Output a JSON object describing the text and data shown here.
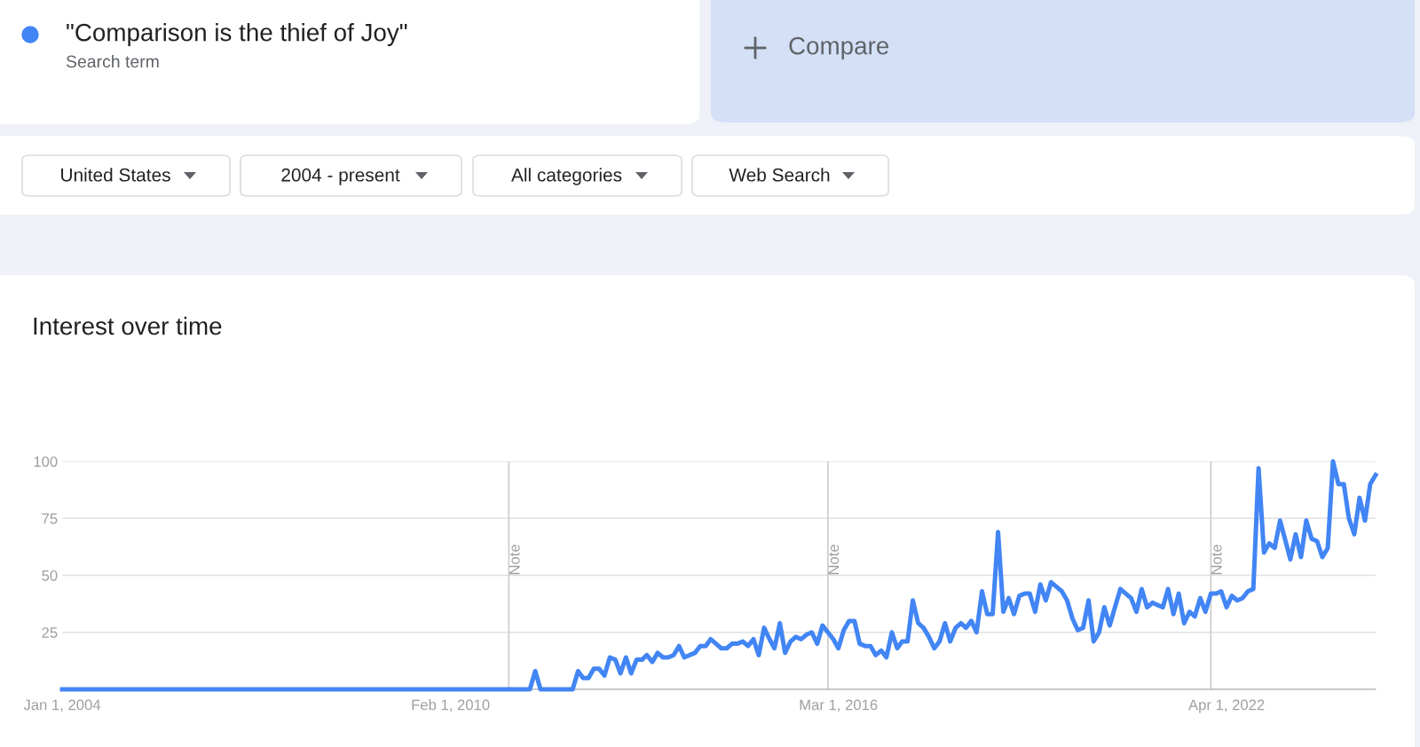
{
  "chart_data": {
    "type": "line",
    "title": "Interest over time",
    "legend": "top left",
    "annotations": [
      "Search term",
      "Compare",
      "United States",
      "2004 - present",
      "All categories",
      "Web Search"
    ],
    "xlim": [
      "2004-01",
      "2024-08"
    ],
    "ylim": [
      0,
      100
    ],
    "xticks": [
      {
        "value": "2004-01-01",
        "label": "Jan 1, 2004"
      },
      {
        "value": "2010-02-01",
        "label": "Feb 1, 2010"
      },
      {
        "value": "2016-03-01",
        "label": "Mar 1, 2016"
      },
      {
        "value": "2022-04-01",
        "label": "Apr 1, 2022"
      }
    ],
    "yticks": [
      {
        "value": 0,
        "label": null
      },
      25,
      50,
      75,
      100
    ],
    "grid": "y",
    "ref_lines": [
      {
        "axis": "x",
        "value": "2011-01",
        "label": "Note",
        "color": "#cccccc"
      },
      {
        "axis": "x",
        "value": "2016-01",
        "label": "Note",
        "color": "#cccccc"
      },
      {
        "axis": "x",
        "value": "2022-01",
        "label": "Note",
        "color": "#cccccc"
      }
    ],
    "series": [
      {
        "name": "\"Comparison is the thief of Joy\"",
        "color": "#4285f4",
        "x": [
          "2004-01",
          "2011-05",
          "2011-06",
          "2011-07",
          "2012-01",
          "2012-02",
          "2012-03",
          "2012-04",
          "2012-05",
          "2012-06",
          "2012-07",
          "2012-08",
          "2012-09",
          "2012-10",
          "2012-11",
          "2012-12",
          "2013-01",
          "2013-02",
          "2013-03",
          "2013-04",
          "2013-05",
          "2013-06",
          "2013-07",
          "2013-08",
          "2013-09",
          "2013-10",
          "2013-12",
          "2014-01",
          "2014-02",
          "2014-03",
          "2014-04",
          "2014-05",
          "2014-06",
          "2014-07",
          "2014-08",
          "2014-09",
          "2014-10",
          "2014-11",
          "2014-12",
          "2015-01",
          "2015-02",
          "2015-03",
          "2015-04",
          "2015-05",
          "2015-06",
          "2015-07",
          "2015-08",
          "2015-09",
          "2015-10",
          "2015-11",
          "2015-12",
          "2016-01",
          "2016-02",
          "2016-03",
          "2016-04",
          "2016-05",
          "2016-06",
          "2016-07",
          "2016-08",
          "2016-09",
          "2016-10",
          "2016-11",
          "2016-12",
          "2017-01",
          "2017-02",
          "2017-03",
          "2017-04",
          "2017-05",
          "2017-06",
          "2017-07",
          "2017-08",
          "2017-09",
          "2017-10",
          "2017-11",
          "2017-12",
          "2018-01",
          "2018-02",
          "2018-03",
          "2018-04",
          "2018-05",
          "2018-06",
          "2018-07",
          "2018-08",
          "2018-09",
          "2018-10",
          "2018-11",
          "2018-12",
          "2019-01",
          "2019-02",
          "2019-03",
          "2019-04",
          "2019-05",
          "2019-06",
          "2019-07",
          "2019-08",
          "2019-09",
          "2019-10",
          "2019-11",
          "2019-12",
          "2020-01",
          "2020-02",
          "2020-03",
          "2020-04",
          "2020-05",
          "2020-06",
          "2020-07",
          "2020-08",
          "2020-09",
          "2020-10",
          "2020-11",
          "2020-12",
          "2021-01",
          "2021-02",
          "2021-03",
          "2021-04",
          "2021-05",
          "2021-06",
          "2021-07",
          "2021-08",
          "2021-09",
          "2021-10",
          "2021-11",
          "2021-12",
          "2022-01",
          "2022-02",
          "2022-03",
          "2022-04",
          "2022-05",
          "2022-06",
          "2022-07",
          "2022-08",
          "2022-09",
          "2022-10",
          "2022-11",
          "2022-12",
          "2023-01",
          "2023-02",
          "2023-03",
          "2023-04",
          "2023-05",
          "2023-06",
          "2023-07",
          "2023-08",
          "2023-09",
          "2023-10",
          "2023-11",
          "2023-12",
          "2024-01",
          "2024-02",
          "2024-03",
          "2024-04",
          "2024-05",
          "2024-06",
          "2024-07",
          "2024-08"
        ],
        "values": [
          0,
          0,
          8,
          0,
          0,
          8,
          5,
          5,
          9,
          9,
          6,
          14,
          13,
          7,
          14,
          7,
          13,
          13,
          15,
          12,
          16,
          14,
          14,
          15,
          19,
          14,
          16,
          19,
          19,
          22,
          20,
          18,
          18,
          20,
          20,
          21,
          19,
          22,
          15,
          27,
          22,
          18,
          29,
          16,
          21,
          23,
          22,
          24,
          25,
          20,
          28,
          25,
          22,
          18,
          26,
          30,
          30,
          20,
          19,
          19,
          15,
          17,
          14,
          25,
          18,
          21,
          21,
          39,
          29,
          27,
          23,
          18,
          21,
          29,
          21,
          27,
          29,
          27,
          30,
          25,
          43,
          33,
          33,
          69,
          34,
          40,
          33,
          41,
          42,
          42,
          34,
          46,
          39,
          47,
          45,
          43,
          39,
          31,
          26,
          27,
          39,
          21,
          25,
          36,
          28,
          36,
          44,
          42,
          40,
          34,
          44,
          36,
          38,
          37,
          36,
          44,
          33,
          42,
          29,
          34,
          32,
          40,
          34,
          42,
          42,
          43,
          36,
          41,
          39,
          40,
          43,
          44,
          97,
          60,
          64,
          62,
          74,
          66,
          57,
          68,
          58,
          74,
          66,
          65,
          58,
          62,
          100,
          90,
          90,
          75,
          68,
          84,
          74,
          90,
          94
        ]
      }
    ]
  }
}
